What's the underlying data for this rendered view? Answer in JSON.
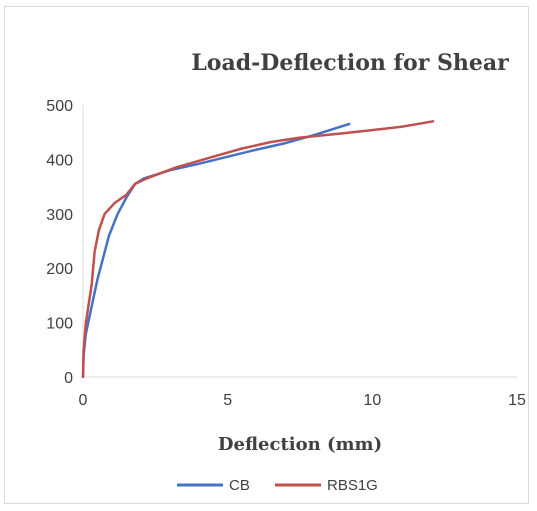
{
  "chart_data": {
    "type": "line",
    "title": "Load-Deflection for Shear",
    "xlabel": "Deflection (mm)",
    "ylabel": "",
    "xlim": [
      0,
      15
    ],
    "ylim": [
      0,
      500
    ],
    "x_ticks": [
      0,
      5,
      10,
      15
    ],
    "y_ticks": [
      0,
      100,
      200,
      300,
      400,
      500
    ],
    "grid": false,
    "legend": "bottom",
    "series": [
      {
        "name": "CB",
        "color": "#4472c4",
        "points": [
          [
            0,
            0
          ],
          [
            0.02,
            40
          ],
          [
            0.1,
            80
          ],
          [
            0.3,
            130
          ],
          [
            0.5,
            180
          ],
          [
            0.7,
            220
          ],
          [
            0.9,
            260
          ],
          [
            1.2,
            300
          ],
          [
            1.5,
            330
          ],
          [
            1.8,
            355
          ],
          [
            2.1,
            365
          ],
          [
            3,
            380
          ],
          [
            4,
            392
          ],
          [
            5,
            405
          ],
          [
            6,
            418
          ],
          [
            7,
            430
          ],
          [
            8,
            445
          ],
          [
            9.2,
            465
          ]
        ]
      },
      {
        "name": "RBS1G",
        "color": "#c0504d",
        "points": [
          [
            0,
            0
          ],
          [
            0.02,
            50
          ],
          [
            0.1,
            100
          ],
          [
            0.3,
            170
          ],
          [
            0.4,
            230
          ],
          [
            0.55,
            270
          ],
          [
            0.75,
            300
          ],
          [
            1.1,
            320
          ],
          [
            1.5,
            335
          ],
          [
            1.8,
            355
          ],
          [
            2.2,
            365
          ],
          [
            3.2,
            385
          ],
          [
            4.5,
            405
          ],
          [
            5.5,
            420
          ],
          [
            6.5,
            432
          ],
          [
            7.5,
            440
          ],
          [
            9,
            448
          ],
          [
            11,
            460
          ],
          [
            12.1,
            470
          ]
        ]
      }
    ]
  }
}
